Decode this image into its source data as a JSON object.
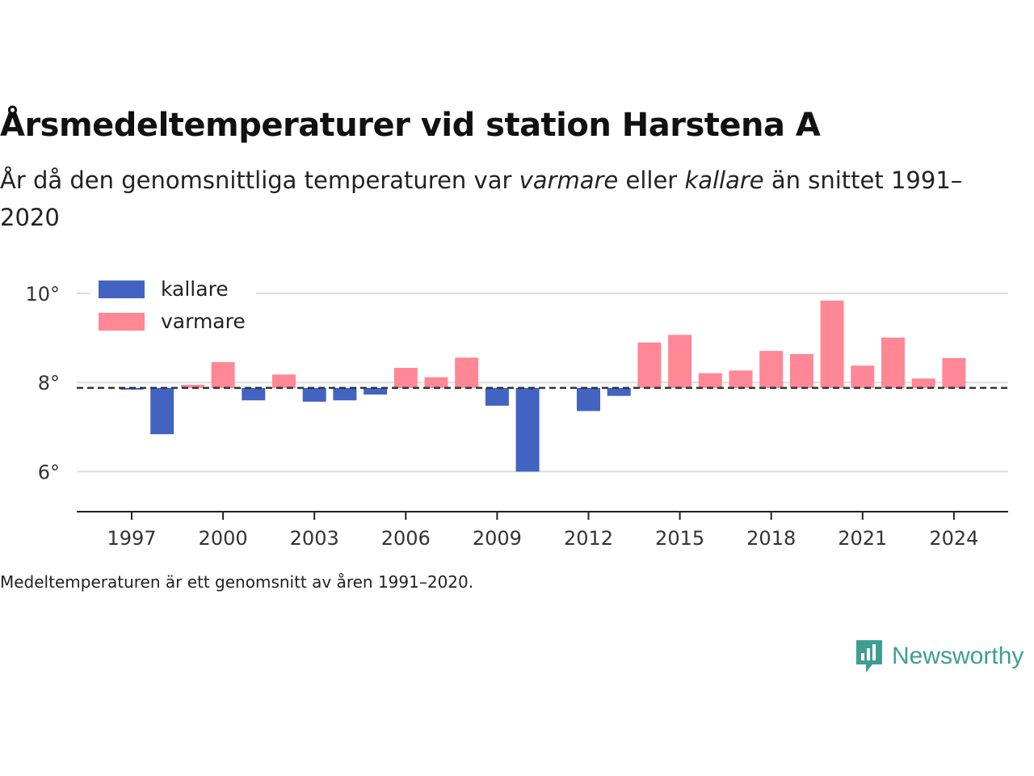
{
  "title": "Årsmedeltemperaturer vid station Harstena A",
  "subtitle": {
    "part1": "År då den genomsnittliga temperaturen var ",
    "warm": "varmare",
    "part2": " eller ",
    "cold": "kallare",
    "part3": " än snittet 1991–2020"
  },
  "note": "Medeltemperaturen är ett genomsnitt av åren 1991–2020.",
  "logo": {
    "text": "Newsworthy",
    "icon": "speech-bubble-bar-chart-icon"
  },
  "colors": {
    "kallare": "#4263c2",
    "varmare": "#ff8796",
    "baseline": "#333333",
    "grid": "#dddddd",
    "axis": "#222222"
  },
  "chart_data": {
    "type": "bar",
    "baseline": 7.88,
    "ylim": [
      5.1,
      10.6
    ],
    "yticks": [
      6,
      8,
      10
    ],
    "ytick_labels": [
      "6°",
      "8°",
      "10°"
    ],
    "xticks": [
      1997,
      2000,
      2003,
      2006,
      2009,
      2012,
      2015,
      2018,
      2021,
      2024
    ],
    "xtick_labels": [
      "1997",
      "2000",
      "2003",
      "2006",
      "2009",
      "2012",
      "2015",
      "2018",
      "2021",
      "2024"
    ],
    "legend": {
      "position": "top-left",
      "items": [
        {
          "label": "kallare",
          "color": "#4263c2"
        },
        {
          "label": "varmare",
          "color": "#ff8796"
        }
      ]
    },
    "categories": [
      1997,
      1998,
      1999,
      2000,
      2001,
      2002,
      2003,
      2004,
      2005,
      2006,
      2007,
      2008,
      2009,
      2010,
      2012,
      2013,
      2014,
      2015,
      2016,
      2017,
      2018,
      2019,
      2020,
      2021,
      2022,
      2023,
      2024
    ],
    "values": [
      7.84,
      6.84,
      7.95,
      8.46,
      7.6,
      8.18,
      7.57,
      7.6,
      7.73,
      8.33,
      8.12,
      8.56,
      7.48,
      6.0,
      7.36,
      7.7,
      8.9,
      9.07,
      8.21,
      8.27,
      8.71,
      8.64,
      9.84,
      8.38,
      9.01,
      8.09,
      8.55
    ]
  }
}
